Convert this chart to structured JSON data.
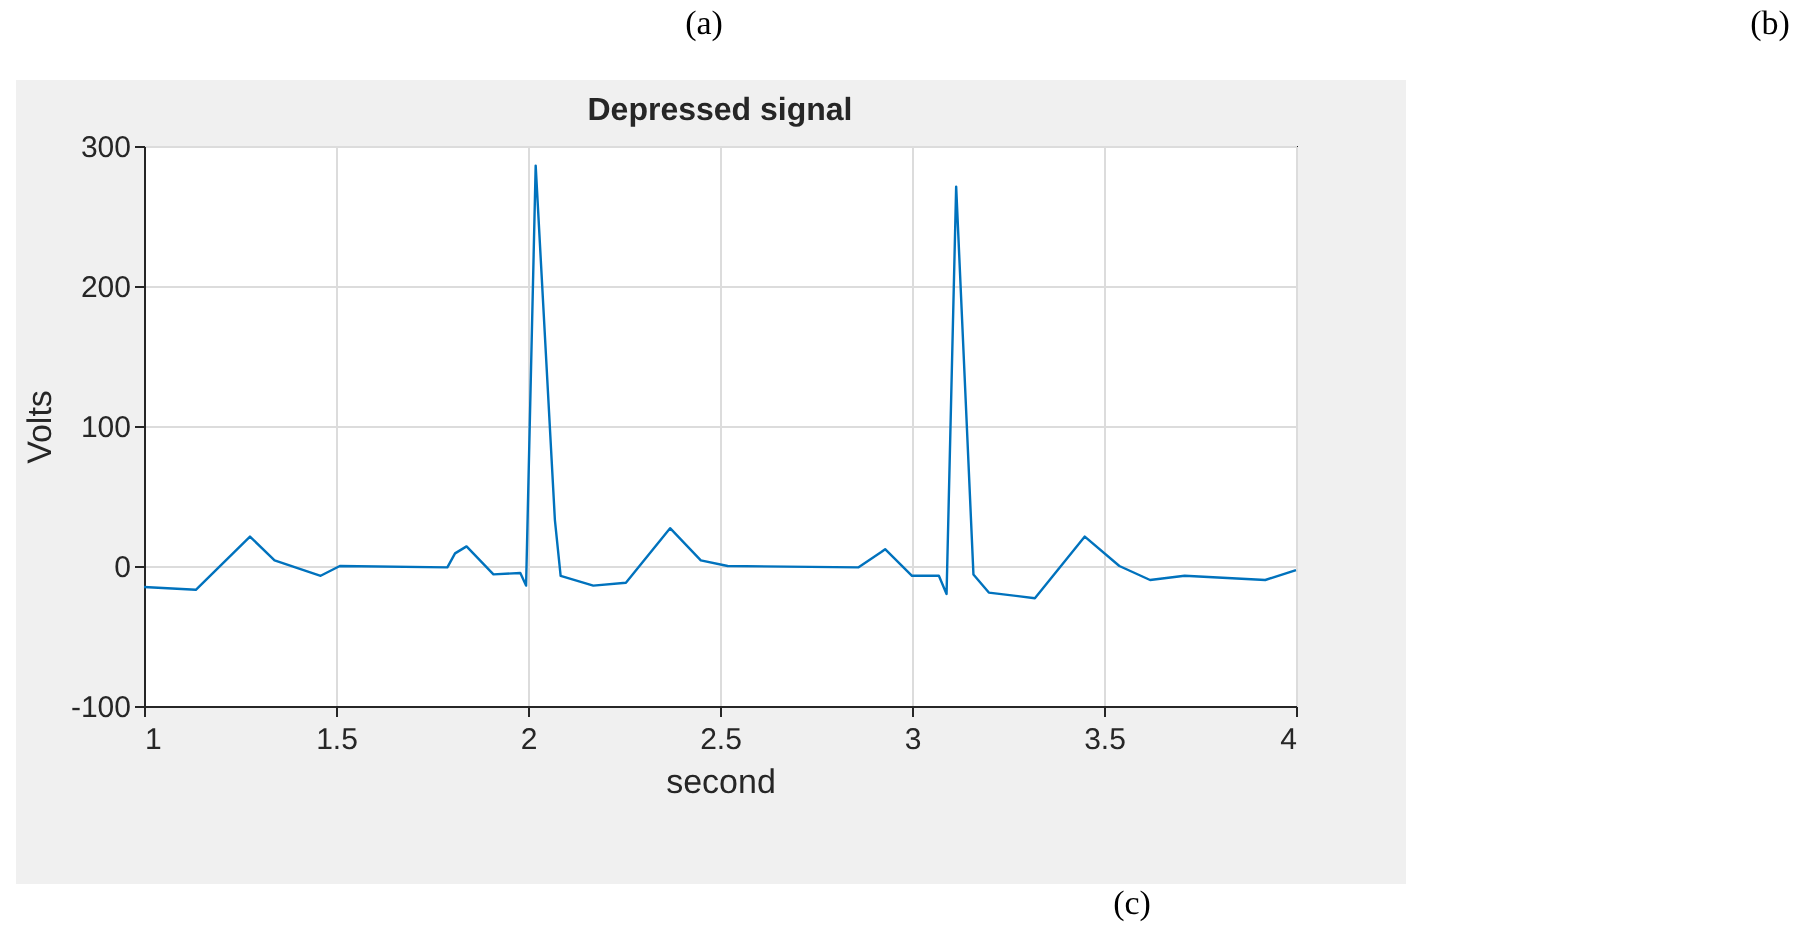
{
  "chart_data": {
    "type": "line",
    "title": "Depressed signal",
    "xlabel": "second",
    "ylabel": "Volts",
    "annotations": [
      "(a)",
      "(b)",
      "(c)"
    ],
    "x": [
      1,
      1.135,
      1.276,
      1.34,
      1.46,
      1.51,
      1.79,
      1.81,
      1.84,
      1.91,
      1.98,
      1.995,
      2.02,
      2.07,
      2.085,
      2.17,
      2.255,
      2.37,
      2.45,
      2.52,
      2.86,
      2.92,
      2.93,
      3.0,
      3.07,
      3.09,
      3.115,
      3.16,
      3.2,
      3.32,
      3.45,
      3.54,
      3.62,
      3.71,
      3.92,
      4.0
    ],
    "series": [
      {
        "color": "#0072bd",
        "values": [
          -15,
          -17,
          21,
          4,
          -7,
          0,
          -1,
          9,
          14,
          -6,
          -5,
          -14,
          286,
          33,
          -7,
          -14,
          -12,
          27,
          4,
          0,
          -1,
          10,
          12,
          -7,
          -7,
          -20,
          271,
          -6,
          -19,
          -23,
          21,
          0,
          -10,
          -7,
          -10,
          -3
        ]
      }
    ],
    "xlim": [
      1,
      4
    ],
    "xticks": [
      1,
      1.5,
      2,
      2.5,
      3,
      3.5,
      4
    ],
    "ylim": [
      -100,
      300
    ],
    "yticks": [
      -100,
      0,
      100,
      200,
      300
    ],
    "grid": true,
    "legend": false,
    "line_style": "solid",
    "marker": "none"
  }
}
